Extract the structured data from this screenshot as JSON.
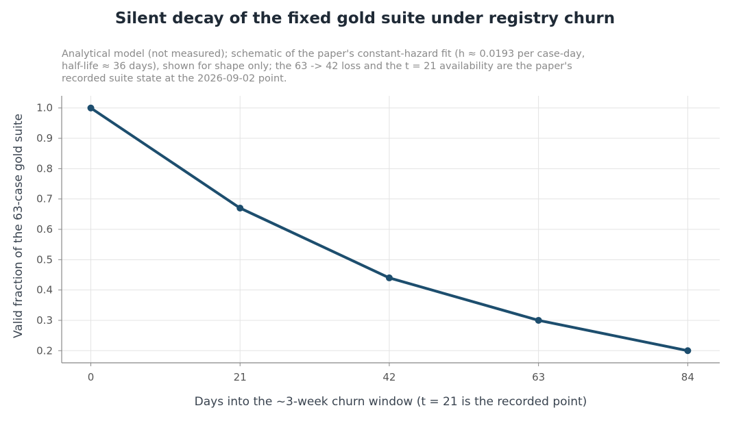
{
  "chart_data": {
    "type": "line",
    "title": "Silent decay of the fixed gold suite under registry churn",
    "subtitle_lines": [
      "Analytical model (not measured); schematic of the paper's constant-hazard fit (h ≈ 0.0193 per case-day,",
      "half-life ≈ 36 days), shown for shape only; the 63 -> 42 loss and the t = 21 availability are the paper's",
      "recorded suite state at the 2026-09-02 point."
    ],
    "xlabel": "Days into the ~3-week churn window (t = 21 is the recorded point)",
    "ylabel": "Valid fraction of the 63-case gold suite",
    "x": [
      0,
      21,
      42,
      63,
      84
    ],
    "series": [
      {
        "values": [
          1.0,
          0.67,
          0.44,
          0.3,
          0.2
        ]
      }
    ],
    "x_ticks": [
      "0",
      "21",
      "42",
      "63",
      "84"
    ],
    "y_ticks": [
      "0.2",
      "0.3",
      "0.4",
      "0.5",
      "0.6",
      "0.7",
      "0.8",
      "0.9",
      "1.0"
    ],
    "xlim": [
      -4.1,
      88.5
    ],
    "ylim": [
      0.16,
      1.04
    ],
    "grid": true,
    "line_color": "#1d4e6e",
    "grid_color": "#e3e3e3",
    "axis_color": "#888888"
  }
}
